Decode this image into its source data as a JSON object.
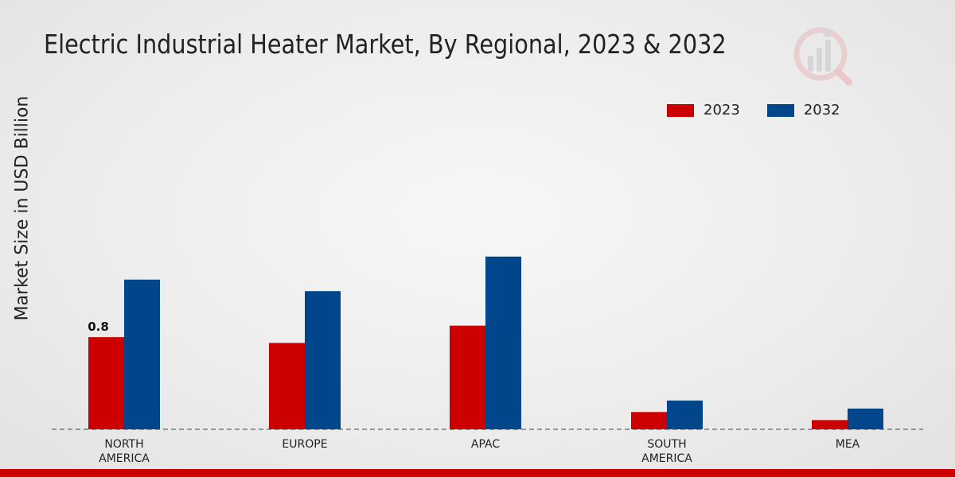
{
  "colors": {
    "series_2023": "#cc0000",
    "series_2032": "#00468b",
    "bottom_bar": "#cc0000",
    "axis_line": "#444444",
    "text": "#222222"
  },
  "logo": {
    "icon": "analytics-watermark-icon"
  },
  "chart_data": {
    "type": "bar",
    "title": "Electric Industrial Heater Market, By Regional, 2023 & 2032",
    "xlabel": "",
    "ylabel": "Market Size in USD Billion",
    "categories": [
      "NORTH\nAMERICA",
      "EUROPE",
      "APAC",
      "SOUTH\nAMERICA",
      "MEA"
    ],
    "series": [
      {
        "name": "2023",
        "values": [
          0.8,
          0.75,
          0.9,
          0.15,
          0.08
        ]
      },
      {
        "name": "2032",
        "values": [
          1.3,
          1.2,
          1.5,
          0.25,
          0.18
        ]
      }
    ],
    "data_labels": [
      {
        "series": 0,
        "category": 0,
        "text": "0.8"
      }
    ],
    "ylim": [
      0,
      2.9
    ],
    "grid": false,
    "legend_position": "top-right"
  }
}
